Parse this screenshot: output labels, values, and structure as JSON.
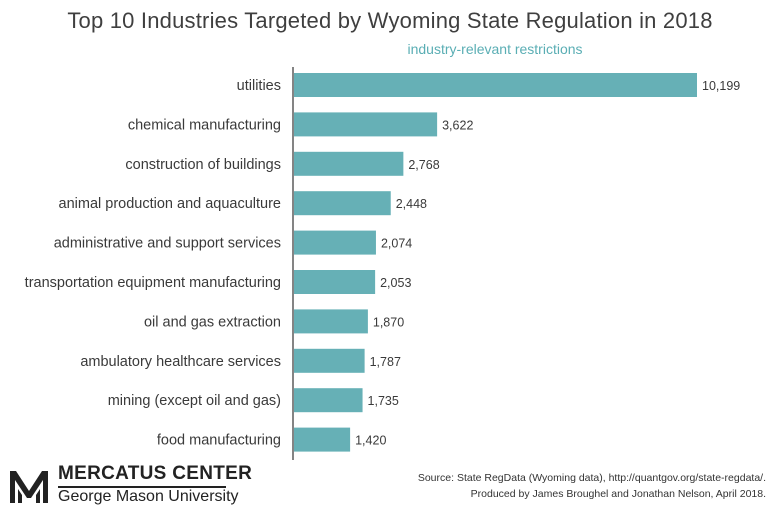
{
  "title": "Top 10 Industries Targeted by Wyoming State Regulation in 2018",
  "series_label": "industry-relevant restrictions",
  "colors": {
    "bar": "#66b0b6",
    "series_label": "#5aaeb4",
    "axis": "#333333"
  },
  "chart_data": {
    "type": "bar",
    "orientation": "horizontal",
    "categories": [
      "utilities",
      "chemical manufacturing",
      "construction of buildings",
      "animal production and aquaculture",
      "administrative and support services",
      "transportation equipment manufacturing",
      "oil and gas extraction",
      "ambulatory healthcare services",
      "mining (except oil and gas)",
      "food manufacturing"
    ],
    "series": [
      {
        "name": "industry-relevant restrictions",
        "values": [
          10199,
          3622,
          2768,
          2448,
          2074,
          2053,
          1870,
          1787,
          1735,
          1420
        ],
        "labels": [
          "10,199",
          "3,622",
          "2,768",
          "2,448",
          "2,074",
          "2,053",
          "1,870",
          "1,787",
          "1,735",
          "1,420"
        ]
      }
    ],
    "xlim": [
      0,
      10199
    ],
    "grid": false,
    "legend": "top"
  },
  "logo": {
    "name": "MERCATUS CENTER",
    "subtitle": "George Mason University",
    "icon": "mercatus-logo-icon"
  },
  "source": {
    "line1": "Source: State RegData (Wyoming data), http://quantgov.org/state-regdata/.",
    "line2": "Produced by James Broughel and Jonathan Nelson, April 2018."
  }
}
